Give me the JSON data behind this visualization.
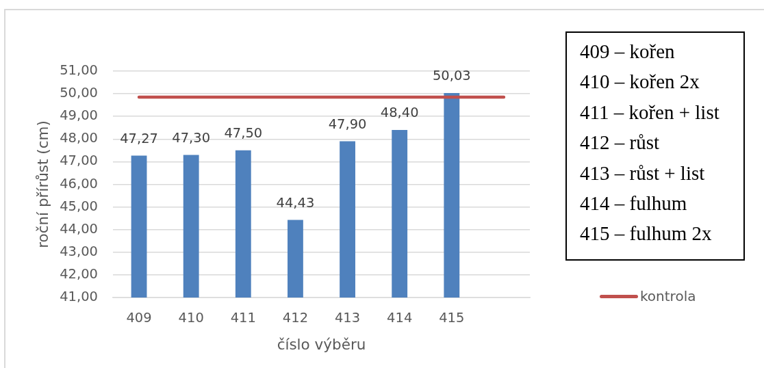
{
  "chart_data": {
    "type": "bar",
    "xlabel": "číslo výběru",
    "ylabel": "roční přírůst (cm)",
    "categories": [
      "409",
      "410",
      "411",
      "412",
      "413",
      "414",
      "415",
      null
    ],
    "series": [
      {
        "color": "#4f81bd",
        "values": [
          47.27,
          47.3,
          47.5,
          44.43,
          47.9,
          48.4,
          50.03,
          null
        ],
        "value_labels": [
          "47,27",
          "47,30",
          "47,50",
          "44,43",
          "47,90",
          "48,40",
          "50,03",
          null
        ]
      },
      {
        "type": "line",
        "name": "kontrola",
        "color": "#c0504d",
        "marker": "none",
        "values": [
          49.85,
          49.85,
          49.85,
          49.85,
          49.85,
          49.85,
          49.85,
          49.85
        ]
      }
    ],
    "ylim": [
      41,
      51
    ],
    "yticks": [
      {
        "value": 41,
        "label": "41,00"
      },
      {
        "value": 42,
        "label": "42,00"
      },
      {
        "value": 43,
        "label": "43,00"
      },
      {
        "value": 44,
        "label": "44,00"
      },
      {
        "value": 45,
        "label": "45,00"
      },
      {
        "value": 46,
        "label": "46,00"
      },
      {
        "value": 47,
        "label": "47,00"
      },
      {
        "value": 48,
        "label": "48,00"
      },
      {
        "value": 49,
        "label": "49,00"
      },
      {
        "value": 50,
        "label": "50,00"
      },
      {
        "value": 51,
        "label": "51,00"
      }
    ],
    "grid": "y",
    "legend": "right",
    "annotations": [
      "409 – kořen",
      "410 – kořen 2x",
      "411 – kořen + list",
      "412 – růst",
      "413 – růst + list",
      "414 – fulhum",
      "415 – fulhum 2x"
    ]
  }
}
